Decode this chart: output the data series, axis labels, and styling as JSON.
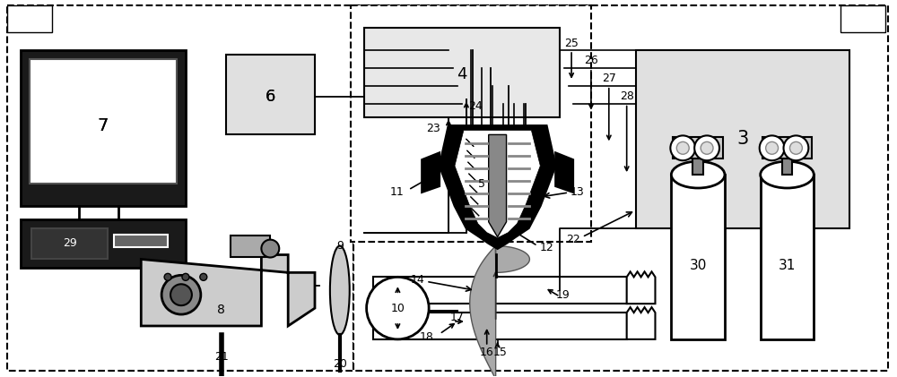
{
  "fig_width": 10.0,
  "fig_height": 4.21,
  "dpi": 100,
  "bg_color": "#ffffff"
}
